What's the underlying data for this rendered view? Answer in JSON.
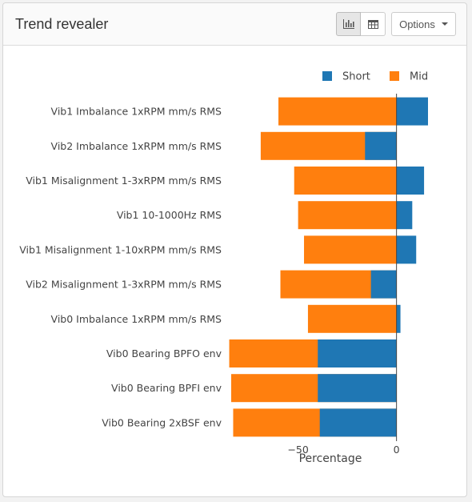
{
  "panel": {
    "title": "Trend revealer",
    "options_label": "Options",
    "icons": [
      "bar-chart-icon",
      "table-icon",
      "caret-down-icon"
    ]
  },
  "colors": {
    "short": "#1f77b4",
    "mid": "#ff7f0e"
  },
  "chart_data": {
    "type": "bar",
    "orientation": "horizontal",
    "barmode": "overlay",
    "categories": [
      "Vib1 Imbalance 1xRPM mm/s RMS",
      "Vib2 Imbalance 1xRPM mm/s RMS",
      "Vib1 Misalignment 1-3xRPM mm/s RMS",
      "Vib1 10-1000Hz RMS",
      "Vib1 Misalignment 1-10xRPM mm/s RMS",
      "Vib2 Misalignment 1-3xRPM mm/s RMS",
      "Vib0 Imbalance 1xRPM mm/s RMS",
      "Vib0 Bearing BPFO env",
      "Vib0 Bearing BPFI env",
      "Vib0 Bearing 2xBSF env"
    ],
    "series": [
      {
        "name": "Mid",
        "values": [
          -60,
          -69,
          -52,
          -50,
          -47,
          -59,
          -45,
          -85,
          -84,
          -83
        ]
      },
      {
        "name": "Short",
        "values": [
          16,
          -16,
          14,
          8,
          10,
          -13,
          2,
          -40,
          -40,
          -39
        ]
      }
    ],
    "xlabel": "Percentage",
    "xlim": [
      -84,
      16
    ],
    "xticks": [
      -50,
      0
    ],
    "xtick_labels": [
      "−50",
      "0"
    ],
    "legend": {
      "placement": "top-right",
      "order": [
        "Short",
        "Mid"
      ]
    },
    "grid": false
  }
}
